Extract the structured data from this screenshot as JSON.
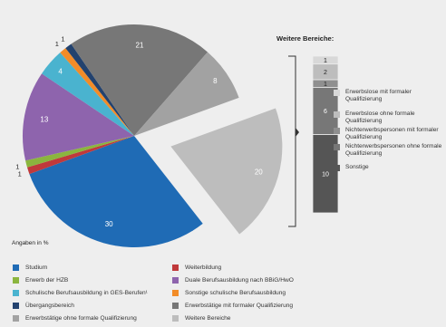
{
  "chart_data": [
    {
      "type": "pie",
      "units_label": "Angaben in %",
      "slices": [
        {
          "name": "Weitere Bereiche",
          "value": 20,
          "color": "#bdbdbd",
          "exploded": true
        },
        {
          "name": "Studium",
          "value": 30,
          "color": "#1f6bb5"
        },
        {
          "name": "Weiterbildung",
          "value": 1,
          "color": "#c0393b"
        },
        {
          "name": "Erwerb der HZB",
          "value": 1,
          "color": "#8bb53e"
        },
        {
          "name": "Duale Berufsausbildung nach BBiG/HwO",
          "value": 13,
          "color": "#8e64ad"
        },
        {
          "name": "Schulische Berufsausbildung in GES-Berufen¹",
          "value": 4,
          "color": "#4ab3cf"
        },
        {
          "name": "Sonstige schulische Berufsausbildung",
          "value": 1,
          "color": "#f28c28"
        },
        {
          "name": "Übergangsbereich",
          "value": 1,
          "color": "#23426e"
        },
        {
          "name": "Erwerbstätige mit formaler Qualifizierung",
          "value": 21,
          "color": "#777777"
        },
        {
          "name": "Erwerbstätige ohne formale Qualifizierung",
          "value": 8,
          "color": "#a2a2a2"
        }
      ]
    },
    {
      "type": "bar",
      "stacked": true,
      "title": "Weitere Bereiche:",
      "segments": [
        {
          "name": "Sonstige",
          "value": 10,
          "color": "#555555"
        },
        {
          "name": "Nichterwerbspersonen ohne formale Qualifizierung",
          "value": 6,
          "color": "#777777"
        },
        {
          "name": "Nichterwerbspersonen mit formaler Qualifizierung",
          "value": 1,
          "color": "#8f8f8f"
        },
        {
          "name": "Erwerbslose ohne formale Qualifizierung",
          "value": 2,
          "color": "#bdbdbd"
        },
        {
          "name": "Erwerbslose mit formaler Qualifizierung",
          "value": 1,
          "color": "#d8d8d8"
        }
      ]
    }
  ],
  "side_legend": [
    {
      "label": "Erwerbslose mit formaler Qualifizierung",
      "color": "#d8d8d8"
    },
    {
      "label": "Erwerbslose ohne formale Qualifizierung",
      "color": "#bdbdbd"
    },
    {
      "label": "Nichterwerbspersonen mit formaler Qualifizierung",
      "color": "#8f8f8f"
    },
    {
      "label": "Nichterwerbspersonen ohne formale Qualifizierung",
      "color": "#777777"
    },
    {
      "label": "Sonstige",
      "color": "#555555"
    }
  ],
  "legend": [
    {
      "label": "Studium",
      "color": "#1f6bb5"
    },
    {
      "label": "Weiterbildung",
      "color": "#c0393b"
    },
    {
      "label": "Erwerb der HZB",
      "color": "#8bb53e"
    },
    {
      "label": "Duale Berufsausbildung nach BBiG/HwO",
      "color": "#8e64ad"
    },
    {
      "label": "Schulische Berufsausbildung in GES-Berufen¹",
      "color": "#4ab3cf"
    },
    {
      "label": "Sonstige schulische Berufsausbildung",
      "color": "#f28c28"
    },
    {
      "label": "Übergangsbereich",
      "color": "#23426e"
    },
    {
      "label": "Erwerbstätige mit formaler Qualifizierung",
      "color": "#777777"
    },
    {
      "label": "Erwerbstätige ohne formale Qualifizierung",
      "color": "#a2a2a2"
    },
    {
      "label": "Weitere Bereiche",
      "color": "#bdbdbd"
    }
  ]
}
